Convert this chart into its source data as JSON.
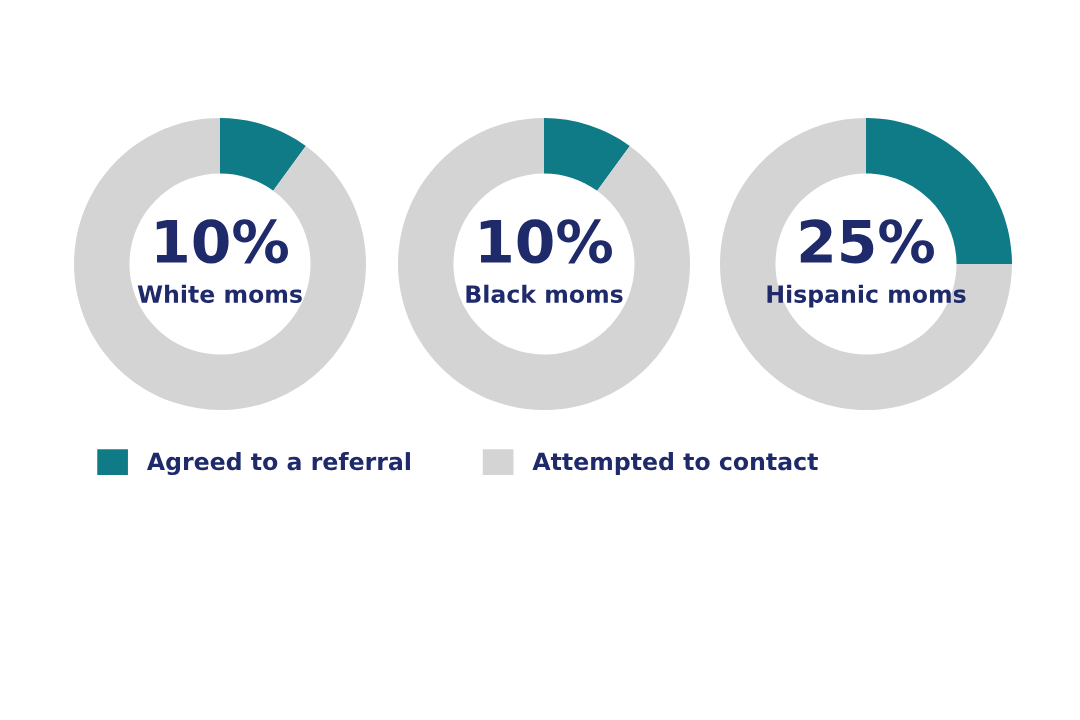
{
  "chart_data": [
    {
      "type": "donut",
      "categories": [
        "Agreed to a referral",
        "Attempted to contact"
      ],
      "values": [
        10,
        90
      ],
      "colors": [
        "#0f7b86",
        "#d4d4d4"
      ],
      "value_labels": [
        "10%",
        null
      ],
      "annotations": [
        "White moms"
      ],
      "legend": "bottom"
    },
    {
      "type": "donut",
      "categories": [
        null,
        null
      ],
      "values": [
        10,
        90
      ],
      "colors": [
        "#0f7b86",
        "#d4d4d4"
      ],
      "value_labels": [
        "10%",
        null
      ],
      "annotations": [
        "Black moms"
      ]
    },
    {
      "type": "donut",
      "categories": [
        null,
        null
      ],
      "values": [
        25,
        75
      ],
      "colors": [
        "#0f7b86",
        "#d4d4d4"
      ],
      "value_labels": [
        "25%",
        null
      ],
      "annotations": [
        "Hispanic moms"
      ]
    }
  ]
}
